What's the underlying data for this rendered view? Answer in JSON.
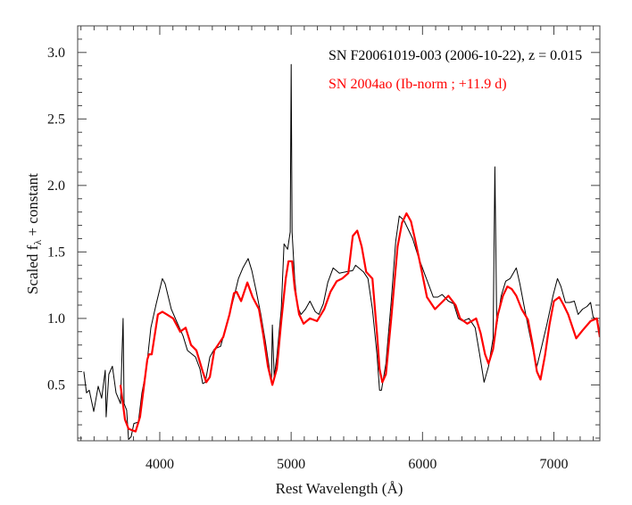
{
  "chart_data": {
    "type": "line",
    "xlabel": "Rest Wavelength (Å)",
    "ylabel_main": "Scaled f",
    "ylabel_sub": "λ",
    "ylabel_rest": " + constant",
    "xlim": [
      3375,
      7350
    ],
    "ylim": [
      0.08,
      3.2
    ],
    "x_major_ticks": [
      4000,
      5000,
      6000,
      7000
    ],
    "x_tick_labels": [
      "4000",
      "5000",
      "6000",
      "7000"
    ],
    "x_minor_step": 100,
    "y_major_ticks": [
      0.5,
      1.0,
      1.5,
      2.0,
      2.5,
      3.0
    ],
    "y_tick_labels": [
      "0.5",
      "1.0",
      "1.5",
      "2.0",
      "2.5",
      "3.0"
    ],
    "y_minor_step": 0.1,
    "grid": false,
    "legend_placement": "top-right",
    "series": [
      {
        "name": "SN F20061019-003 (2006-10-22), z = 0.015",
        "color": "#000000",
        "x": [
          3422,
          3442,
          3463,
          3497,
          3531,
          3558,
          3585,
          3592,
          3612,
          3639,
          3667,
          3701,
          3721,
          3728,
          3748,
          3762,
          3782,
          3803,
          3837,
          3864,
          3898,
          3932,
          3973,
          4020,
          4041,
          4088,
          4136,
          4177,
          4211,
          4272,
          4306,
          4327,
          4347,
          4381,
          4415,
          4463,
          4517,
          4565,
          4599,
          4633,
          4673,
          4701,
          4735,
          4769,
          4803,
          4837,
          4850,
          4857,
          4871,
          4891,
          4925,
          4946,
          4973,
          4993,
          5000,
          5007,
          5027,
          5048,
          5075,
          5109,
          5143,
          5184,
          5211,
          5245,
          5279,
          5320,
          5367,
          5415,
          5469,
          5490,
          5551,
          5585,
          5619,
          5653,
          5673,
          5687,
          5721,
          5762,
          5796,
          5823,
          5857,
          5891,
          5925,
          5966,
          6014,
          6048,
          6082,
          6116,
          6150,
          6197,
          6238,
          6272,
          6306,
          6354,
          6401,
          6435,
          6469,
          6503,
          6537,
          6551,
          6565,
          6599,
          6633,
          6667,
          6714,
          6741,
          6776,
          6810,
          6850,
          6871,
          6905,
          6946,
          6993,
          7027,
          7054,
          7088,
          7122,
          7156,
          7184,
          7218,
          7252,
          7279,
          7299,
          7340
        ],
        "y": [
          0.6,
          0.44,
          0.46,
          0.3,
          0.49,
          0.4,
          0.61,
          0.26,
          0.58,
          0.64,
          0.44,
          0.36,
          1.0,
          0.36,
          0.31,
          0.09,
          0.11,
          0.21,
          0.22,
          0.44,
          0.62,
          0.93,
          1.11,
          1.3,
          1.26,
          1.07,
          0.96,
          0.87,
          0.76,
          0.71,
          0.62,
          0.51,
          0.52,
          0.71,
          0.77,
          0.79,
          0.98,
          1.16,
          1.3,
          1.38,
          1.45,
          1.36,
          1.2,
          1.03,
          0.83,
          0.6,
          0.53,
          0.95,
          0.56,
          0.71,
          1.07,
          1.56,
          1.52,
          1.65,
          2.91,
          1.65,
          1.3,
          1.09,
          1.03,
          1.07,
          1.13,
          1.05,
          1.03,
          1.11,
          1.27,
          1.38,
          1.34,
          1.35,
          1.36,
          1.4,
          1.35,
          1.3,
          1.07,
          0.73,
          0.46,
          0.46,
          0.66,
          1.13,
          1.58,
          1.77,
          1.74,
          1.67,
          1.6,
          1.47,
          1.34,
          1.25,
          1.16,
          1.16,
          1.18,
          1.13,
          1.11,
          1.0,
          0.98,
          1.0,
          0.93,
          0.73,
          0.52,
          0.64,
          0.85,
          2.14,
          0.95,
          1.17,
          1.28,
          1.3,
          1.38,
          1.26,
          1.08,
          0.91,
          0.72,
          0.64,
          0.78,
          0.95,
          1.17,
          1.3,
          1.24,
          1.12,
          1.12,
          1.13,
          1.03,
          1.07,
          1.09,
          1.12,
          1.01,
          0.98
        ]
      },
      {
        "name": "SN 2004ao (Ib-norm ; +11.9 d)",
        "color": "#ff0000",
        "x": [
          3701,
          3735,
          3762,
          3816,
          3850,
          3905,
          3918,
          3939,
          3986,
          4020,
          4054,
          4102,
          4156,
          4197,
          4238,
          4279,
          4327,
          4354,
          4381,
          4415,
          4483,
          4531,
          4565,
          4585,
          4619,
          4667,
          4707,
          4755,
          4789,
          4823,
          4857,
          4891,
          4925,
          4959,
          4980,
          5007,
          5027,
          5061,
          5095,
          5143,
          5197,
          5252,
          5299,
          5347,
          5388,
          5435,
          5469,
          5503,
          5537,
          5571,
          5619,
          5653,
          5673,
          5694,
          5721,
          5762,
          5810,
          5844,
          5878,
          5912,
          5946,
          5993,
          6034,
          6095,
          6136,
          6197,
          6252,
          6286,
          6340,
          6408,
          6442,
          6476,
          6503,
          6537,
          6571,
          6612,
          6646,
          6680,
          6714,
          6755,
          6803,
          6837,
          6871,
          6898,
          6932,
          6966,
          7000,
          7041,
          7075,
          7109,
          7170,
          7218,
          7279,
          7327,
          7350
        ],
        "y": [
          0.5,
          0.24,
          0.17,
          0.15,
          0.26,
          0.69,
          0.73,
          0.73,
          1.03,
          1.05,
          1.03,
          1.0,
          0.9,
          0.93,
          0.8,
          0.76,
          0.6,
          0.52,
          0.56,
          0.76,
          0.86,
          1.03,
          1.19,
          1.2,
          1.13,
          1.27,
          1.16,
          1.07,
          0.87,
          0.64,
          0.5,
          0.62,
          0.98,
          1.3,
          1.43,
          1.43,
          1.23,
          1.03,
          0.96,
          1.0,
          0.98,
          1.07,
          1.2,
          1.28,
          1.3,
          1.34,
          1.62,
          1.66,
          1.54,
          1.35,
          1.3,
          0.89,
          0.62,
          0.52,
          0.58,
          1.0,
          1.54,
          1.72,
          1.79,
          1.73,
          1.58,
          1.36,
          1.16,
          1.07,
          1.11,
          1.17,
          1.1,
          1.0,
          0.96,
          1.0,
          0.89,
          0.73,
          0.66,
          0.77,
          1.02,
          1.17,
          1.24,
          1.22,
          1.17,
          1.07,
          0.99,
          0.81,
          0.6,
          0.54,
          0.72,
          0.95,
          1.13,
          1.16,
          1.1,
          1.03,
          0.85,
          0.91,
          0.98,
          1.0,
          0.86
        ]
      }
    ]
  }
}
